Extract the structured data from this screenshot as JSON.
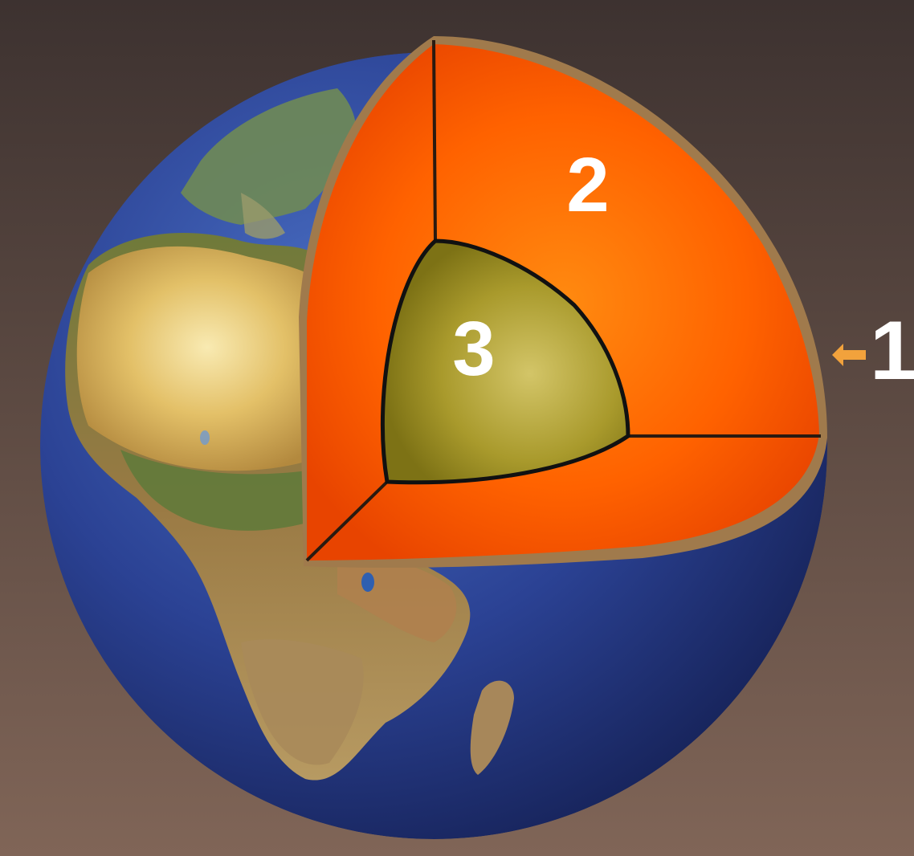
{
  "labels": {
    "crust": "1",
    "mantle": "2",
    "core": "3"
  },
  "colors": {
    "background_top": "#3f3432",
    "background_bottom": "#7d6354",
    "ocean": "#2a3f8f",
    "mantle": "#ff5a00",
    "core": "#a89a2a",
    "arrow": "#f2a23c",
    "label": "#ffffff"
  },
  "icons": {
    "pointer": "arrow-left-icon"
  }
}
